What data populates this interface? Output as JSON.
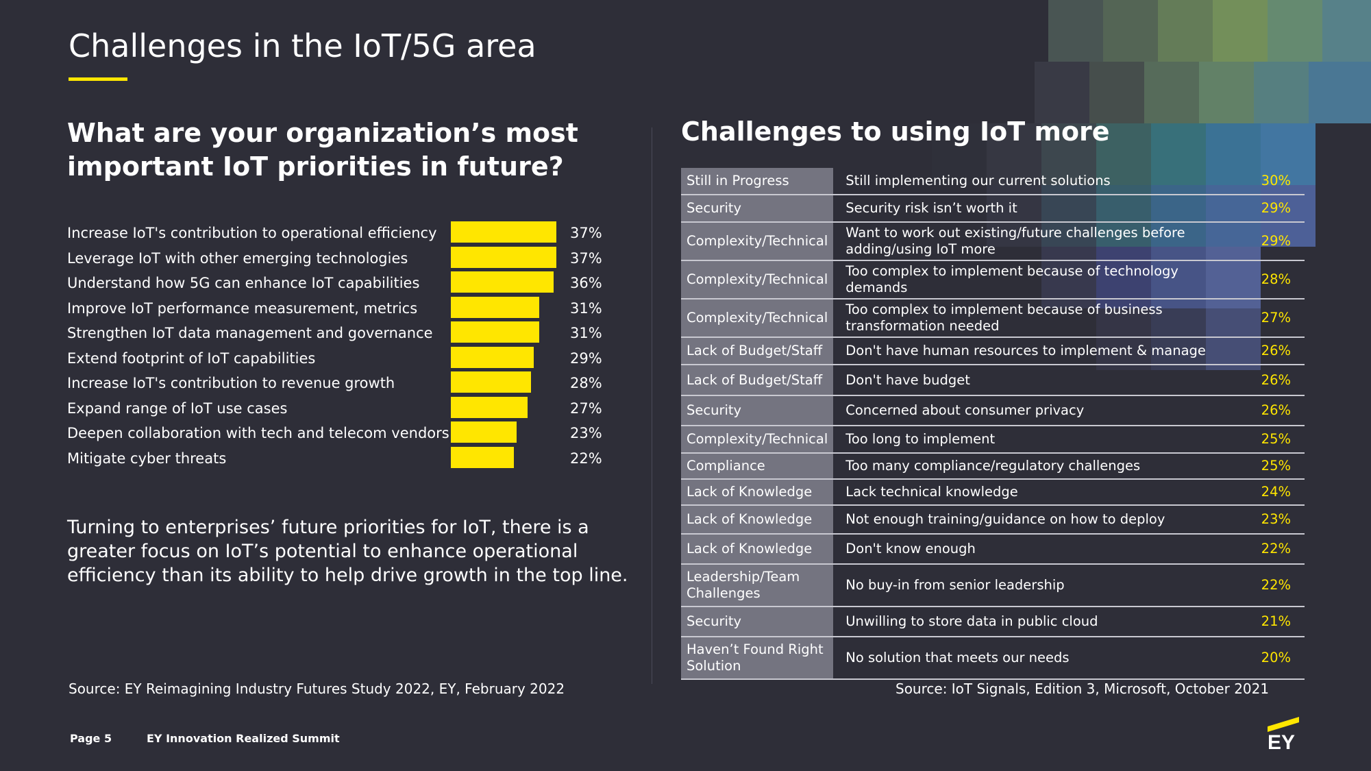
{
  "slide_title": "Challenges in the IoT/5G area",
  "left": {
    "heading": "What are your organization’s most important IoT priorities in future?",
    "body": "Turning to enterprises’ future priorities for IoT, there is a greater focus on IoT’s potential to enhance operational efficiency than its ability to help drive growth in the top line.",
    "source": "Source: EY Reimagining Industry Futures Study 2022, EY, February 2022"
  },
  "chart_data": {
    "type": "bar",
    "orientation": "horizontal",
    "categories": [
      "Increase IoT's contribution to operational efficiency",
      "Leverage IoT with other emerging technologies",
      "Understand how 5G can enhance IoT capabilities",
      "Improve IoT performance measurement, metrics",
      "Strengthen IoT data management and governance",
      "Extend footprint of IoT capabilities",
      "Increase IoT's contribution to revenue growth",
      "Expand range of IoT use cases",
      "Deepen collaboration with tech and telecom vendors",
      "Mitigate cyber threats"
    ],
    "values": [
      37,
      37,
      36,
      31,
      31,
      29,
      28,
      27,
      23,
      22
    ],
    "value_labels": [
      "37%",
      "37%",
      "36%",
      "31%",
      "31%",
      "29%",
      "28%",
      "27%",
      "23%",
      "22%"
    ],
    "unit": "%",
    "xlim": [
      0,
      37
    ],
    "grid": false,
    "bar_color": "#ffe600"
  },
  "right": {
    "heading": "Challenges to using IoT more",
    "source": "Source: IoT Signals, Edition 3, Microsoft, October 2021",
    "rows": [
      {
        "category": "Still in Progress",
        "challenge": "Still implementing our current solutions",
        "pct": "30%"
      },
      {
        "category": "Security",
        "challenge": "Security risk isn’t worth it",
        "pct": "29%"
      },
      {
        "category": "Complexity/Technical",
        "challenge": "Want to work out existing/future challenges before adding/using IoT more",
        "pct": "29%"
      },
      {
        "category": "Complexity/Technical",
        "challenge": "Too complex to implement because of technology demands",
        "pct": "28%"
      },
      {
        "category": "Complexity/Technical",
        "challenge": "Too complex to implement because of business transformation needed",
        "pct": "27%"
      },
      {
        "category": "Lack of Budget/Staff",
        "challenge": "Don't have human resources to implement & manage",
        "pct": "26%"
      },
      {
        "category": "Lack of Budget/Staff",
        "challenge": "Don't have budget",
        "pct": "26%"
      },
      {
        "category": "Security",
        "challenge": "Concerned about consumer privacy",
        "pct": "26%"
      },
      {
        "category": "Complexity/Technical",
        "challenge": "Too long to implement",
        "pct": "25%"
      },
      {
        "category": "Compliance",
        "challenge": "Too many compliance/regulatory challenges",
        "pct": "25%"
      },
      {
        "category": "Lack of Knowledge",
        "challenge": "Lack technical knowledge",
        "pct": "24%"
      },
      {
        "category": "Lack of Knowledge",
        "challenge": "Not enough training/guidance on how to deploy",
        "pct": "23%"
      },
      {
        "category": "Lack of Knowledge",
        "challenge": "Don't know enough",
        "pct": "22%"
      },
      {
        "category": "Leadership/Team Challenges",
        "challenge": "No buy-in from senior leadership",
        "pct": "22%"
      },
      {
        "category": "Security",
        "challenge": "Unwilling to store data in public cloud",
        "pct": "21%"
      },
      {
        "category": "Haven’t Found Right Solution",
        "challenge": "No solution that meets our needs",
        "pct": "20%"
      }
    ]
  },
  "footer": {
    "page": "Page 5",
    "event": "EY Innovation Realized Summit",
    "logo": "EY"
  },
  "colors": {
    "background": "#2e2e38",
    "accent": "#ffe600",
    "table_category_bg": "#747480"
  }
}
